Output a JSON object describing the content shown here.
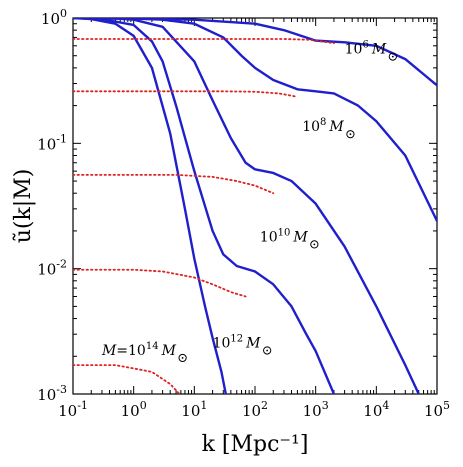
{
  "chart_data": {
    "type": "line",
    "xlabel": "k [Mpc⁻¹]",
    "ylabel": "ũ(k|M)",
    "xscale": "log",
    "yscale": "log",
    "xlim": [
      0.1,
      100000
    ],
    "ylim": [
      0.001,
      1
    ],
    "grid": false,
    "x_tick_labels": [
      {
        "value": 0.1,
        "base": "10",
        "exp": "-1"
      },
      {
        "value": 1,
        "base": "10",
        "exp": "0"
      },
      {
        "value": 10,
        "base": "10",
        "exp": "1"
      },
      {
        "value": 100,
        "base": "10",
        "exp": "2"
      },
      {
        "value": 1000,
        "base": "10",
        "exp": "3"
      },
      {
        "value": 10000,
        "base": "10",
        "exp": "4"
      },
      {
        "value": 100000,
        "base": "10",
        "exp": "5"
      }
    ],
    "y_tick_labels": [
      {
        "value": 0.001,
        "base": "10",
        "exp": "-3"
      },
      {
        "value": 0.01,
        "base": "10",
        "exp": "-2"
      },
      {
        "value": 0.1,
        "base": "10",
        "exp": "-1"
      },
      {
        "value": 1,
        "base": "10",
        "exp": "0"
      }
    ],
    "colors": {
      "solid": "#1f1fcc",
      "dotted": "#dd2222"
    },
    "annotations": [
      {
        "mass": "10⁶ M☉",
        "base": "10",
        "exp": "6",
        "unit": "M",
        "prefix": ""
      },
      {
        "mass": "10⁸ M☉",
        "base": "10",
        "exp": "8",
        "unit": "M",
        "prefix": ""
      },
      {
        "mass": "10¹⁰ M☉",
        "base": "10",
        "exp": "10",
        "unit": "M",
        "prefix": ""
      },
      {
        "mass": "10¹² M☉",
        "base": "10",
        "exp": "12",
        "unit": "M",
        "prefix": ""
      },
      {
        "mass": "M=10¹⁴ M☉",
        "base": "10",
        "exp": "14",
        "unit": "M",
        "prefix": "M="
      }
    ],
    "series": [
      {
        "style": "solid",
        "points": [
          [
            0.1,
            1
          ],
          [
            1,
            0.99
          ],
          [
            10,
            0.97
          ],
          [
            100,
            0.9
          ],
          [
            300,
            0.8
          ],
          [
            1000,
            0.66
          ],
          [
            3000,
            0.64
          ],
          [
            10000,
            0.6
          ],
          [
            30000,
            0.47
          ],
          [
            100000,
            0.29
          ]
        ]
      },
      {
        "style": "solid",
        "points": [
          [
            0.1,
            1
          ],
          [
            1,
            0.99
          ],
          [
            3,
            0.97
          ],
          [
            10,
            0.9
          ],
          [
            30,
            0.7
          ],
          [
            60,
            0.5
          ],
          [
            100,
            0.4
          ],
          [
            200,
            0.32
          ],
          [
            500,
            0.27
          ],
          [
            1000,
            0.26
          ],
          [
            2000,
            0.25
          ],
          [
            5000,
            0.2
          ],
          [
            10000,
            0.15
          ],
          [
            30000,
            0.08
          ],
          [
            100000,
            0.024
          ]
        ]
      },
      {
        "style": "solid",
        "points": [
          [
            0.1,
            1
          ],
          [
            0.5,
            0.99
          ],
          [
            1,
            0.97
          ],
          [
            3,
            0.85
          ],
          [
            10,
            0.45
          ],
          [
            20,
            0.22
          ],
          [
            40,
            0.11
          ],
          [
            70,
            0.07
          ],
          [
            100,
            0.062
          ],
          [
            200,
            0.058
          ],
          [
            400,
            0.05
          ],
          [
            1000,
            0.033
          ],
          [
            3000,
            0.015
          ],
          [
            10000,
            0.005
          ],
          [
            30000,
            0.0017
          ],
          [
            50000,
            0.001
          ]
        ]
      },
      {
        "style": "solid",
        "points": [
          [
            0.1,
            1
          ],
          [
            0.3,
            0.98
          ],
          [
            1,
            0.88
          ],
          [
            2,
            0.65
          ],
          [
            3,
            0.45
          ],
          [
            5,
            0.2
          ],
          [
            10,
            0.06
          ],
          [
            20,
            0.02
          ],
          [
            30,
            0.013
          ],
          [
            50,
            0.0105
          ],
          [
            100,
            0.0095
          ],
          [
            200,
            0.0075
          ],
          [
            400,
            0.005
          ],
          [
            700,
            0.003
          ],
          [
            1000,
            0.0022
          ],
          [
            2000,
            0.001
          ]
        ]
      },
      {
        "style": "solid",
        "points": [
          [
            0.1,
            1
          ],
          [
            0.2,
            0.98
          ],
          [
            0.5,
            0.9
          ],
          [
            1,
            0.72
          ],
          [
            2,
            0.4
          ],
          [
            4,
            0.12
          ],
          [
            7,
            0.03
          ],
          [
            10,
            0.012
          ],
          [
            15,
            0.005
          ],
          [
            20,
            0.0028
          ],
          [
            28,
            0.0015
          ],
          [
            33,
            0.001
          ]
        ]
      },
      {
        "style": "dotted",
        "points": [
          [
            0.1,
            0.68
          ],
          [
            300,
            0.68
          ],
          [
            800,
            0.67
          ],
          [
            2000,
            0.63
          ]
        ]
      },
      {
        "style": "dotted",
        "points": [
          [
            0.1,
            0.26
          ],
          [
            30,
            0.26
          ],
          [
            100,
            0.258
          ],
          [
            250,
            0.25
          ],
          [
            500,
            0.235
          ]
        ]
      },
      {
        "style": "dotted",
        "points": [
          [
            0.1,
            0.056
          ],
          [
            5,
            0.056
          ],
          [
            20,
            0.054
          ],
          [
            50,
            0.05
          ],
          [
            100,
            0.046
          ],
          [
            200,
            0.04
          ]
        ]
      },
      {
        "style": "dotted",
        "points": [
          [
            0.1,
            0.0098
          ],
          [
            1,
            0.0098
          ],
          [
            3,
            0.0095
          ],
          [
            10,
            0.0085
          ],
          [
            20,
            0.0075
          ],
          [
            40,
            0.0065
          ],
          [
            70,
            0.006
          ]
        ]
      },
      {
        "style": "dotted",
        "points": [
          [
            0.1,
            0.0017
          ],
          [
            0.5,
            0.0017
          ],
          [
            1,
            0.0016
          ],
          [
            2,
            0.0015
          ],
          [
            4,
            0.0012
          ],
          [
            7,
            0.0009
          ],
          [
            10,
            0.0007
          ]
        ]
      }
    ]
  }
}
